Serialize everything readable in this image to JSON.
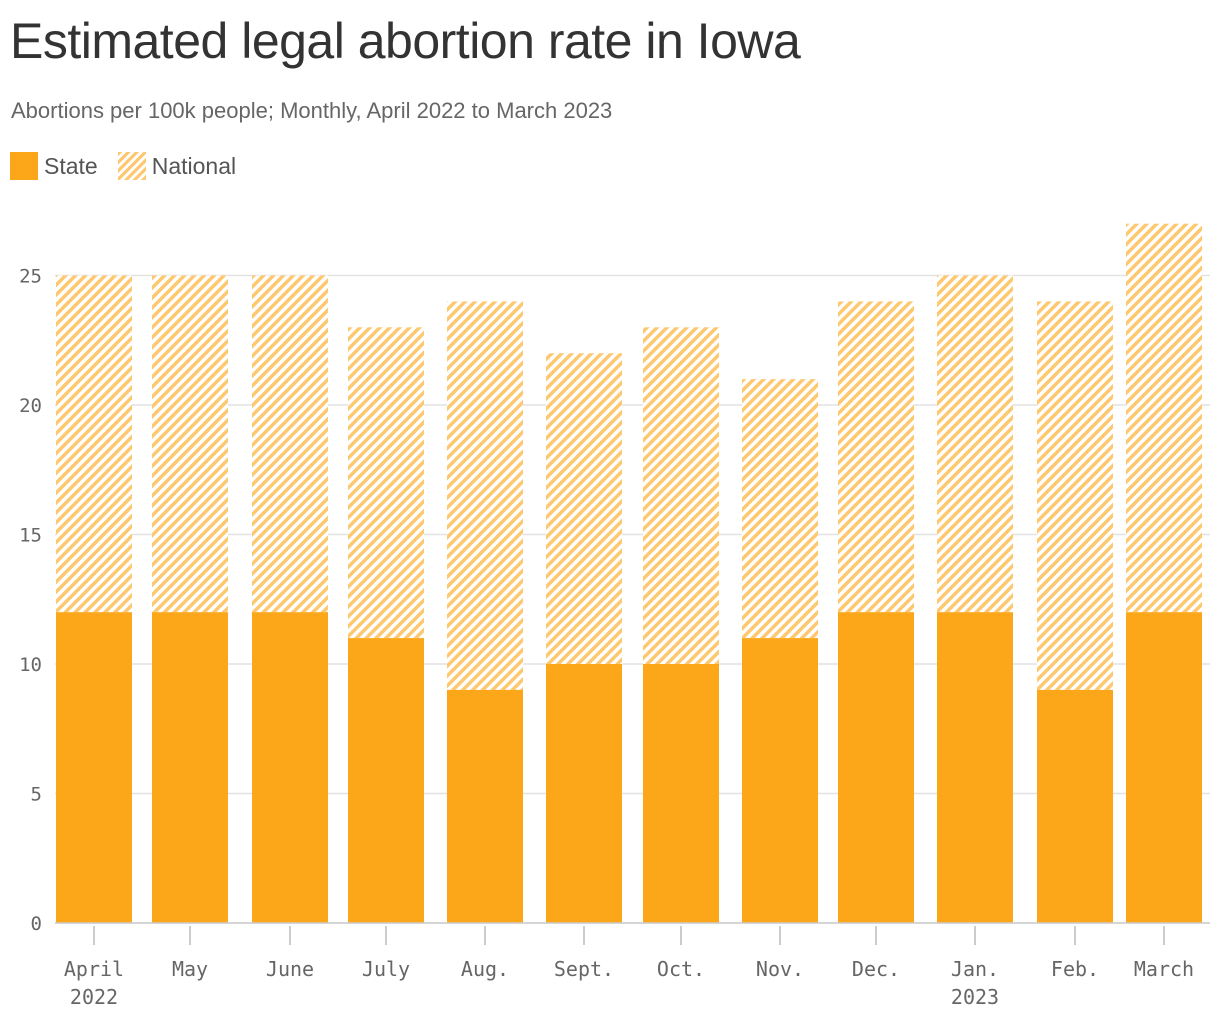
{
  "title": "Estimated legal abortion rate in Iowa",
  "subtitle": "Abortions per 100k people; Monthly, April 2022 to March 2023",
  "legend": {
    "state_label": "State",
    "national_label": "National",
    "state_color": "#fca61a",
    "national_color": "#fdc870"
  },
  "chart_data": {
    "type": "bar",
    "categories": [
      "April",
      "May",
      "June",
      "July",
      "Aug.",
      "Sept.",
      "Oct.",
      "Nov.",
      "Dec.",
      "Jan.",
      "Feb.",
      "March"
    ],
    "category_sublabels": [
      "2022",
      "",
      "",
      "",
      "",
      "",
      "",
      "",
      "",
      "2023",
      "",
      ""
    ],
    "series": [
      {
        "name": "State",
        "color": "#fca61a",
        "values": [
          12,
          12,
          12,
          11,
          9,
          10,
          10,
          11,
          12,
          12,
          9,
          12
        ]
      },
      {
        "name": "National",
        "color": "#fdc870",
        "pattern": "hatched",
        "values": [
          25,
          25,
          25,
          23,
          24,
          22,
          23,
          21,
          24,
          25,
          24,
          27
        ]
      }
    ],
    "ylim": [
      0,
      27
    ],
    "yticks": [
      0,
      5,
      10,
      15,
      20,
      25
    ],
    "grid": true
  }
}
